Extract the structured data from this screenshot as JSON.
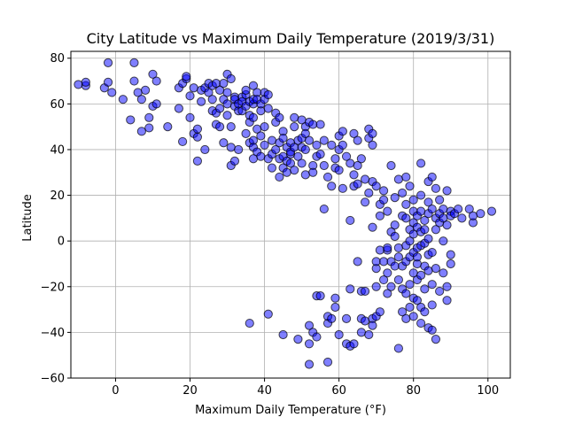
{
  "chart_data": {
    "type": "scatter",
    "title": "City Latitude vs Maximum Daily Temperature (2019/3/31)",
    "xlabel": "Maximum Daily Temperature (°F)",
    "ylabel": "Latitude",
    "xlim": [
      -12,
      106
    ],
    "ylim": [
      -60,
      83
    ],
    "xticks": [
      0,
      20,
      40,
      60,
      80,
      100
    ],
    "yticks": [
      -60,
      -40,
      -20,
      0,
      20,
      40,
      60,
      80
    ],
    "grid": true,
    "marker_face": "#0000ff",
    "marker_edge": "#000000",
    "marker_alpha": 0.5,
    "points": [
      [
        -10,
        68.5
      ],
      [
        -8,
        68
      ],
      [
        -8,
        69.5
      ],
      [
        -3,
        67
      ],
      [
        -2,
        69.5
      ],
      [
        -2,
        78
      ],
      [
        -1,
        65
      ],
      [
        2,
        62
      ],
      [
        4,
        53
      ],
      [
        5,
        70
      ],
      [
        5,
        78
      ],
      [
        6,
        65
      ],
      [
        7,
        48
      ],
      [
        7,
        62
      ],
      [
        8,
        66
      ],
      [
        9,
        49.5
      ],
      [
        9,
        54
      ],
      [
        10,
        73
      ],
      [
        10,
        59
      ],
      [
        11,
        60
      ],
      [
        11,
        70
      ],
      [
        14,
        50
      ],
      [
        17,
        58
      ],
      [
        17,
        67
      ],
      [
        18,
        69
      ],
      [
        18,
        43.5
      ],
      [
        19,
        71
      ],
      [
        19,
        72
      ],
      [
        20,
        54
      ],
      [
        20,
        63.5
      ],
      [
        21,
        67
      ],
      [
        21,
        47
      ],
      [
        22,
        45.5
      ],
      [
        22,
        35
      ],
      [
        22,
        49
      ],
      [
        23,
        66
      ],
      [
        23,
        61
      ],
      [
        24,
        40
      ],
      [
        24,
        67
      ],
      [
        25,
        65
      ],
      [
        25,
        69
      ],
      [
        26,
        68
      ],
      [
        26,
        62
      ],
      [
        26,
        57
      ],
      [
        27,
        51
      ],
      [
        27,
        69
      ],
      [
        27,
        56
      ],
      [
        28,
        66
      ],
      [
        28,
        50
      ],
      [
        28,
        58
      ],
      [
        29,
        62
      ],
      [
        29,
        69
      ],
      [
        29,
        43
      ],
      [
        30,
        73
      ],
      [
        30,
        65
      ],
      [
        30,
        60
      ],
      [
        30,
        55
      ],
      [
        31,
        71
      ],
      [
        31,
        41
      ],
      [
        31,
        33
      ],
      [
        31,
        50
      ],
      [
        32,
        63
      ],
      [
        32,
        59
      ],
      [
        32,
        35
      ],
      [
        32,
        62
      ],
      [
        33,
        57
      ],
      [
        33,
        60
      ],
      [
        33,
        40
      ],
      [
        34,
        63
      ],
      [
        34,
        61
      ],
      [
        34,
        57
      ],
      [
        35,
        47
      ],
      [
        35,
        64
      ],
      [
        35,
        59
      ],
      [
        35,
        66
      ],
      [
        36,
        52
      ],
      [
        36,
        55
      ],
      [
        36,
        61
      ],
      [
        36,
        43
      ],
      [
        36,
        -36
      ],
      [
        37,
        60
      ],
      [
        37,
        54
      ],
      [
        37,
        62
      ],
      [
        37,
        44
      ],
      [
        37,
        41
      ],
      [
        37,
        36
      ],
      [
        37,
        68
      ],
      [
        38,
        65
      ],
      [
        38,
        62
      ],
      [
        38,
        39
      ],
      [
        38,
        49
      ],
      [
        39,
        57
      ],
      [
        39,
        46
      ],
      [
        39,
        37
      ],
      [
        39,
        60
      ],
      [
        40,
        65
      ],
      [
        40,
        50
      ],
      [
        40,
        42
      ],
      [
        40,
        62
      ],
      [
        41,
        58
      ],
      [
        41,
        36
      ],
      [
        41,
        64
      ],
      [
        41,
        -32
      ],
      [
        42,
        38
      ],
      [
        42,
        32
      ],
      [
        42,
        44
      ],
      [
        43,
        56
      ],
      [
        43,
        40
      ],
      [
        43,
        52
      ],
      [
        44,
        43
      ],
      [
        44,
        36
      ],
      [
        44,
        28
      ],
      [
        44,
        54
      ],
      [
        45,
        48
      ],
      [
        45,
        45
      ],
      [
        45,
        32
      ],
      [
        45,
        37
      ],
      [
        45,
        -41
      ],
      [
        46,
        30
      ],
      [
        46,
        41
      ],
      [
        46,
        35
      ],
      [
        47,
        34
      ],
      [
        47,
        38
      ],
      [
        47,
        39
      ],
      [
        47,
        43
      ],
      [
        48,
        41
      ],
      [
        48,
        54
      ],
      [
        48,
        50
      ],
      [
        48,
        31
      ],
      [
        49,
        37
      ],
      [
        49,
        44
      ],
      [
        49,
        -43
      ],
      [
        50,
        45
      ],
      [
        50,
        41
      ],
      [
        50,
        53
      ],
      [
        50,
        34
      ],
      [
        51,
        40
      ],
      [
        51,
        50
      ],
      [
        51,
        29
      ],
      [
        51,
        47
      ],
      [
        52,
        52
      ],
      [
        52,
        -45
      ],
      [
        52,
        -37
      ],
      [
        52,
        44
      ],
      [
        52,
        -54
      ],
      [
        53,
        33
      ],
      [
        53,
        -40
      ],
      [
        53,
        30
      ],
      [
        53,
        51
      ],
      [
        54,
        37
      ],
      [
        54,
        42
      ],
      [
        54,
        -24
      ],
      [
        54,
        -42
      ],
      [
        55,
        51
      ],
      [
        55,
        38
      ],
      [
        55,
        -24
      ],
      [
        56,
        33
      ],
      [
        56,
        44
      ],
      [
        56,
        14
      ],
      [
        57,
        -36
      ],
      [
        57,
        -33
      ],
      [
        57,
        -53
      ],
      [
        57,
        28
      ],
      [
        58,
        42
      ],
      [
        58,
        24
      ],
      [
        58,
        -34
      ],
      [
        59,
        32
      ],
      [
        59,
        -25
      ],
      [
        59,
        -29
      ],
      [
        59,
        36
      ],
      [
        60,
        40
      ],
      [
        60,
        31
      ],
      [
        60,
        46
      ],
      [
        60,
        -41
      ],
      [
        61,
        42
      ],
      [
        61,
        23
      ],
      [
        61,
        48
      ],
      [
        62,
        37
      ],
      [
        62,
        -34
      ],
      [
        62,
        -45
      ],
      [
        63,
        34
      ],
      [
        63,
        -46
      ],
      [
        63,
        9
      ],
      [
        63,
        -21
      ],
      [
        64,
        29
      ],
      [
        64,
        24
      ],
      [
        64,
        -45
      ],
      [
        64,
        47
      ],
      [
        65,
        -9
      ],
      [
        65,
        33
      ],
      [
        65,
        25
      ],
      [
        65,
        44
      ],
      [
        66,
        -40
      ],
      [
        66,
        -34
      ],
      [
        66,
        36
      ],
      [
        66,
        -22
      ],
      [
        67,
        27
      ],
      [
        67,
        17
      ],
      [
        67,
        -35
      ],
      [
        67,
        -22
      ],
      [
        68,
        45
      ],
      [
        68,
        -41
      ],
      [
        68,
        49
      ],
      [
        68,
        21
      ],
      [
        69,
        26
      ],
      [
        69,
        -34
      ],
      [
        69,
        6
      ],
      [
        69,
        -37
      ],
      [
        69,
        42
      ],
      [
        69,
        47
      ],
      [
        70,
        -33
      ],
      [
        70,
        -12
      ],
      [
        70,
        24
      ],
      [
        70,
        -9
      ],
      [
        70,
        -20
      ],
      [
        71,
        11
      ],
      [
        71,
        -4
      ],
      [
        71,
        -31
      ],
      [
        71,
        16
      ],
      [
        72,
        18
      ],
      [
        72,
        -17
      ],
      [
        72,
        22
      ],
      [
        72,
        -9
      ],
      [
        73,
        -23
      ],
      [
        73,
        -14
      ],
      [
        73,
        13
      ],
      [
        73,
        -4
      ],
      [
        73,
        -3
      ],
      [
        74,
        33
      ],
      [
        74,
        4
      ],
      [
        74,
        -9
      ],
      [
        74,
        -20
      ],
      [
        75,
        19
      ],
      [
        75,
        7
      ],
      [
        75,
        -11
      ],
      [
        75,
        2
      ],
      [
        76,
        -17
      ],
      [
        76,
        27
      ],
      [
        76,
        -3
      ],
      [
        76,
        -47
      ],
      [
        76,
        -7
      ],
      [
        77,
        21
      ],
      [
        77,
        -31
      ],
      [
        77,
        11
      ],
      [
        77,
        -21
      ],
      [
        77,
        -11
      ],
      [
        78,
        16
      ],
      [
        78,
        -34
      ],
      [
        78,
        -23
      ],
      [
        78,
        28
      ],
      [
        78,
        10
      ],
      [
        78,
        -2
      ],
      [
        78,
        -9
      ],
      [
        79,
        -29
      ],
      [
        79,
        5
      ],
      [
        79,
        -7
      ],
      [
        79,
        -19
      ],
      [
        79,
        24
      ],
      [
        79,
        0
      ],
      [
        80,
        13
      ],
      [
        80,
        -33
      ],
      [
        80,
        8
      ],
      [
        80,
        -14
      ],
      [
        80,
        3
      ],
      [
        80,
        18
      ],
      [
        80,
        -5
      ],
      [
        80,
        -25
      ],
      [
        81,
        11
      ],
      [
        81,
        -3
      ],
      [
        81,
        -17
      ],
      [
        81,
        -10
      ],
      [
        81,
        -26
      ],
      [
        81,
        6
      ],
      [
        81,
        -7
      ],
      [
        82,
        -36
      ],
      [
        82,
        20
      ],
      [
        82,
        34
      ],
      [
        82,
        -29
      ],
      [
        82,
        -2
      ],
      [
        82,
        13
      ],
      [
        82,
        4
      ],
      [
        82,
        -15
      ],
      [
        83,
        -1
      ],
      [
        83,
        9
      ],
      [
        83,
        -21
      ],
      [
        83,
        -31
      ],
      [
        83,
        5
      ],
      [
        83,
        -11
      ],
      [
        84,
        -38
      ],
      [
        84,
        17
      ],
      [
        84,
        -6
      ],
      [
        84,
        12
      ],
      [
        84,
        -13
      ],
      [
        84,
        26
      ],
      [
        84,
        1
      ],
      [
        85,
        -39
      ],
      [
        85,
        28
      ],
      [
        85,
        -28
      ],
      [
        85,
        14
      ],
      [
        85,
        -5
      ],
      [
        85,
        -19
      ],
      [
        86,
        23
      ],
      [
        86,
        -43
      ],
      [
        86,
        10
      ],
      [
        86,
        -12
      ],
      [
        86,
        5
      ],
      [
        87,
        18
      ],
      [
        87,
        -22
      ],
      [
        87,
        12
      ],
      [
        87,
        8
      ],
      [
        88,
        14
      ],
      [
        88,
        0
      ],
      [
        88,
        -14
      ],
      [
        88,
        10
      ],
      [
        89,
        -26
      ],
      [
        89,
        22
      ],
      [
        89,
        7
      ],
      [
        89,
        -20
      ],
      [
        90,
        13
      ],
      [
        90,
        -6
      ],
      [
        90,
        -10
      ],
      [
        90,
        11
      ],
      [
        91,
        12
      ],
      [
        92,
        14
      ],
      [
        93,
        10
      ],
      [
        95,
        14
      ],
      [
        96,
        8
      ],
      [
        96,
        11
      ],
      [
        98,
        12
      ],
      [
        101,
        13
      ]
    ]
  }
}
